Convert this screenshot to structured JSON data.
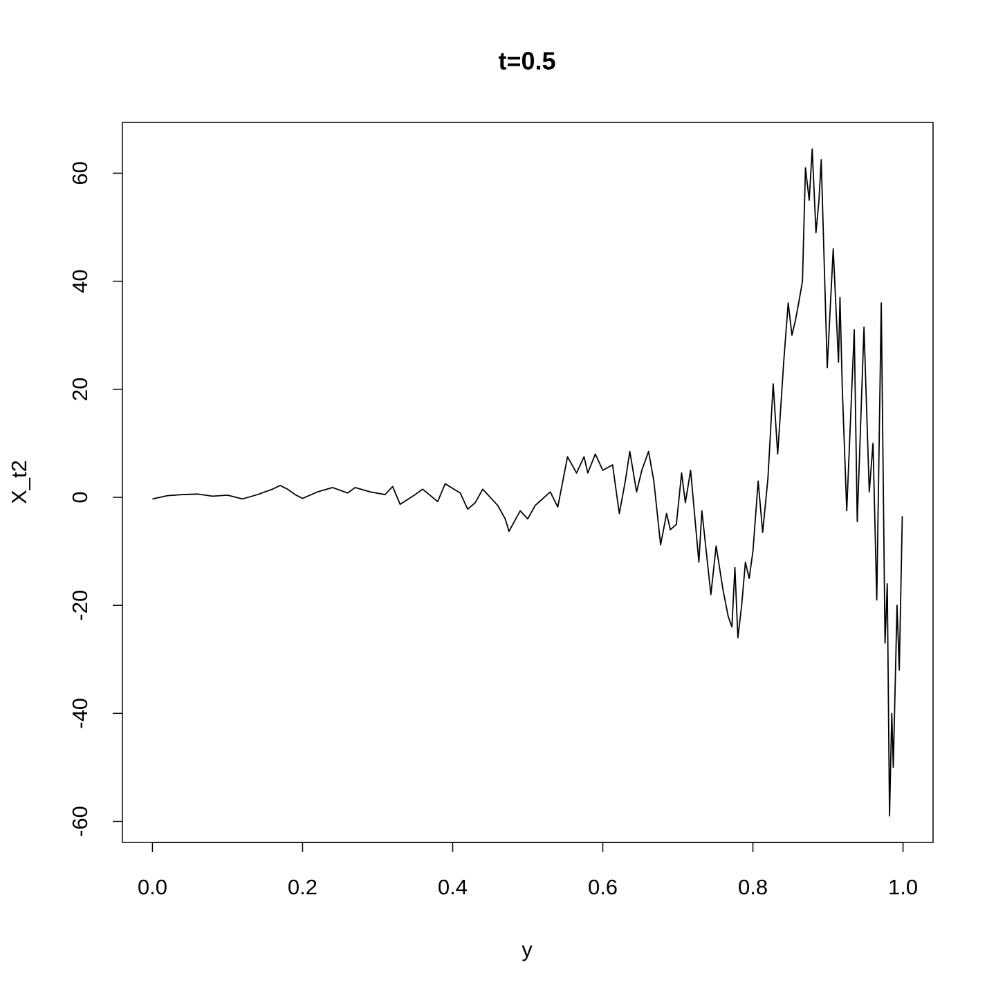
{
  "chart_data": {
    "type": "line",
    "title": "t=0.5",
    "x_label": "y",
    "y_label": "X_t2",
    "color": "#000000",
    "grid": false,
    "xlim": [
      -0.04,
      1.04
    ],
    "ylim": [
      -63.9,
      69.4
    ],
    "xticks": [
      {
        "value": 0,
        "label": "0.0"
      },
      0.2,
      0.4,
      0.6,
      0.8,
      {
        "value": 1,
        "label": "1.0"
      }
    ],
    "yticks": [
      -60,
      -40,
      -20,
      0,
      20,
      40,
      60
    ],
    "x": [
      0,
      0.02,
      0.04,
      0.06,
      0.08,
      0.1,
      0.12,
      0.14,
      0.16,
      0.17,
      0.18,
      0.19,
      0.2,
      0.22,
      0.24,
      0.26,
      0.27,
      0.29,
      0.31,
      0.32,
      0.33,
      0.35,
      0.36,
      0.38,
      0.39,
      0.41,
      0.42,
      0.43,
      0.44,
      0.46,
      0.47,
      0.475,
      0.49,
      0.5,
      0.51,
      0.53,
      0.54,
      0.553,
      0.565,
      0.575,
      0.58,
      0.59,
      0.6,
      0.613,
      0.622,
      0.63,
      0.636,
      0.645,
      0.652,
      0.661,
      0.668,
      0.677,
      0.685,
      0.69,
      0.698,
      0.705,
      0.71,
      0.717,
      0.728,
      0.732,
      0.744,
      0.751,
      0.76,
      0.767,
      0.772,
      0.776,
      0.78,
      0.785,
      0.79,
      0.795,
      0.8,
      0.807,
      0.813,
      0.82,
      0.827,
      0.833,
      0.841,
      0.847,
      0.852,
      0.857,
      0.861,
      0.866,
      0.87,
      0.875,
      0.879,
      0.884,
      0.888,
      0.891,
      0.899,
      0.907,
      0.914,
      0.916,
      0.919,
      0.925,
      0.935,
      0.939,
      0.948,
      0.955,
      0.96,
      0.965,
      0.971,
      0.976,
      0.979,
      0.982,
      0.985,
      0.987,
      0.992,
      0.995,
      0.999
    ],
    "values": [
      -0.3,
      0.3,
      0.5,
      0.6,
      0.2,
      0.4,
      -0.3,
      0.5,
      1.5,
      2.2,
      1.5,
      0.5,
      -0.2,
      1.0,
      1.8,
      0.8,
      1.8,
      1.0,
      0.5,
      2.0,
      -1.3,
      0.5,
      1.5,
      -0.8,
      2.5,
      0.8,
      -2.2,
      -1.0,
      1.5,
      -1.5,
      -4.0,
      -6.3,
      -2.5,
      -4.0,
      -1.5,
      1.0,
      -1.8,
      7.5,
      4.5,
      7.5,
      4.5,
      8.0,
      5.0,
      6.0,
      -3.0,
      3.0,
      8.5,
      1.0,
      5.0,
      8.5,
      3.0,
      -8.8,
      -3.0,
      -6.0,
      -5.0,
      4.5,
      -1.0,
      5.0,
      -12.0,
      -2.5,
      -18.0,
      -9.0,
      -17.0,
      -22.0,
      -24.0,
      -13.0,
      -26.0,
      -20.0,
      -12.0,
      -15.0,
      -10.0,
      3.0,
      -6.5,
      3.5,
      21.0,
      8.0,
      25.0,
      36.0,
      30.0,
      33.0,
      36.0,
      40.0,
      61.0,
      55.0,
      64.5,
      49.0,
      55.0,
      62.5,
      24.0,
      46.0,
      25.0,
      37.0,
      20.5,
      -2.5,
      31.0,
      -4.5,
      31.5,
      1.0,
      10.0,
      -19.0,
      36.0,
      -27.0,
      -16.0,
      -59.0,
      -40.0,
      -50.0,
      -20.0,
      -32.0,
      -3.5
    ]
  }
}
